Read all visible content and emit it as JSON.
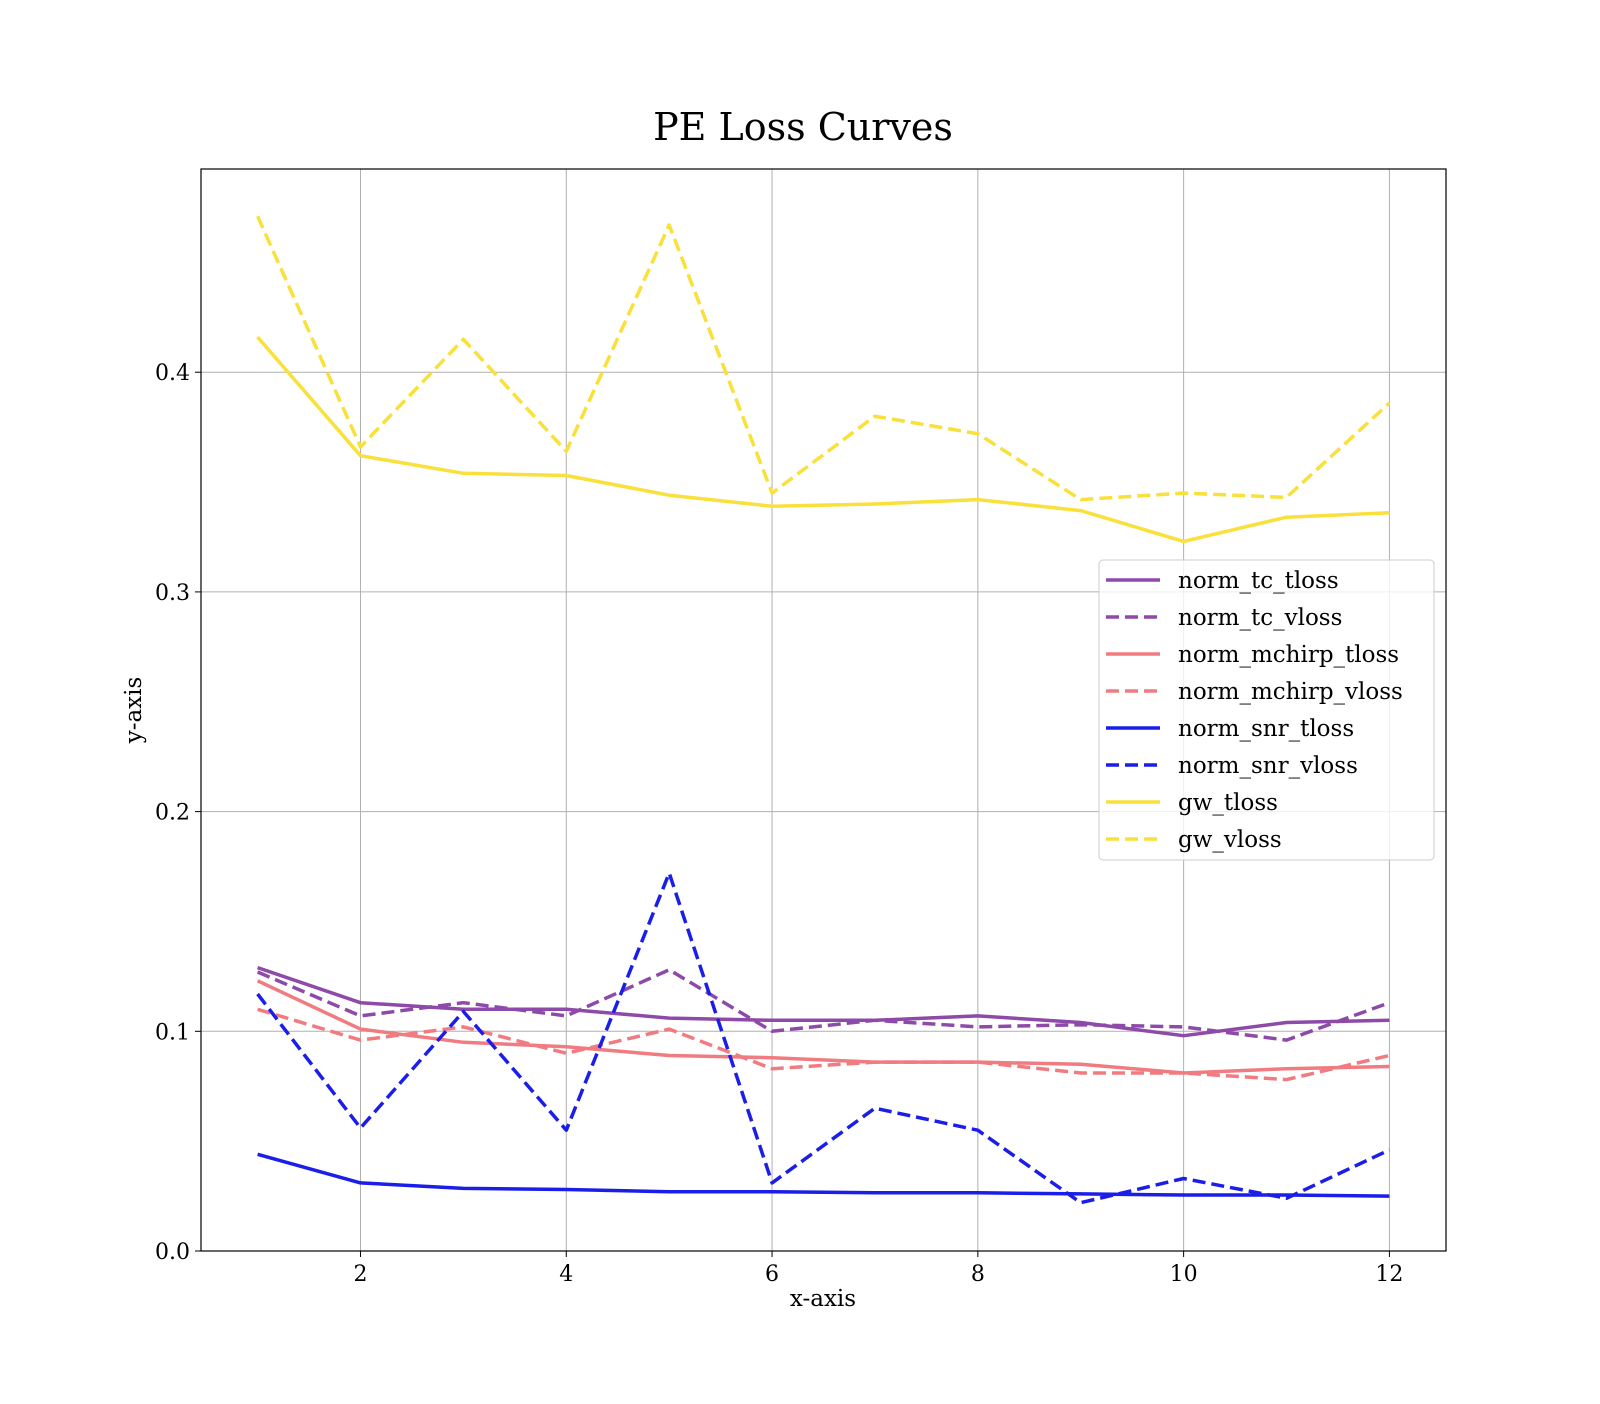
{
  "chart_data": {
    "type": "line",
    "title": "PE Loss Curves",
    "xlabel": "x-axis",
    "ylabel": "y-axis",
    "xlim": [
      0.45,
      12.55
    ],
    "ylim": [
      0,
      0.4925
    ],
    "xticks": [
      2,
      4,
      6,
      8,
      10,
      12
    ],
    "yticks": [
      0.0,
      0.1,
      0.2,
      0.3,
      0.4
    ],
    "xtick_labels": [
      "2",
      "4",
      "6",
      "8",
      "10",
      "12"
    ],
    "ytick_labels": [
      "0.0",
      "0.1",
      "0.2",
      "0.3",
      "0.4"
    ],
    "grid": true,
    "legend_position": "center-right",
    "x": [
      1,
      2,
      3,
      4,
      5,
      6,
      7,
      8,
      9,
      10,
      11,
      12
    ],
    "series": [
      {
        "name": "norm_tc_tloss",
        "color": "#8e4aa8",
        "dash": "solid",
        "values": [
          0.129,
          0.113,
          0.11,
          0.11,
          0.106,
          0.105,
          0.105,
          0.107,
          0.104,
          0.098,
          0.104,
          0.105
        ]
      },
      {
        "name": "norm_tc_vloss",
        "color": "#8e4aa8",
        "dash": "dashed",
        "values": [
          0.127,
          0.107,
          0.113,
          0.107,
          0.128,
          0.1,
          0.105,
          0.102,
          0.103,
          0.102,
          0.096,
          0.113
        ]
      },
      {
        "name": "norm_mchirp_tloss",
        "color": "#f07b80",
        "dash": "solid",
        "values": [
          0.123,
          0.101,
          0.095,
          0.093,
          0.089,
          0.088,
          0.086,
          0.086,
          0.085,
          0.081,
          0.083,
          0.084
        ]
      },
      {
        "name": "norm_mchirp_vloss",
        "color": "#f07b80",
        "dash": "dashed",
        "values": [
          0.11,
          0.096,
          0.102,
          0.09,
          0.101,
          0.083,
          0.086,
          0.086,
          0.081,
          0.081,
          0.078,
          0.089
        ]
      },
      {
        "name": "norm_snr_tloss",
        "color": "#1a1ee8",
        "dash": "solid",
        "values": [
          0.044,
          0.031,
          0.0285,
          0.028,
          0.027,
          0.027,
          0.0265,
          0.0265,
          0.026,
          0.0255,
          0.0255,
          0.025
        ]
      },
      {
        "name": "norm_snr_vloss",
        "color": "#1a1ee8",
        "dash": "dashed",
        "values": [
          0.117,
          0.056,
          0.109,
          0.055,
          0.172,
          0.031,
          0.065,
          0.055,
          0.022,
          0.033,
          0.024,
          0.046
        ]
      },
      {
        "name": "gw_tloss",
        "color": "#f9e03a",
        "dash": "solid",
        "values": [
          0.416,
          0.362,
          0.354,
          0.353,
          0.344,
          0.339,
          0.34,
          0.342,
          0.337,
          0.323,
          0.334,
          0.336
        ]
      },
      {
        "name": "gw_vloss",
        "color": "#f9e03a",
        "dash": "dashed",
        "values": [
          0.471,
          0.366,
          0.415,
          0.364,
          0.467,
          0.345,
          0.38,
          0.372,
          0.342,
          0.345,
          0.343,
          0.386
        ]
      }
    ]
  }
}
